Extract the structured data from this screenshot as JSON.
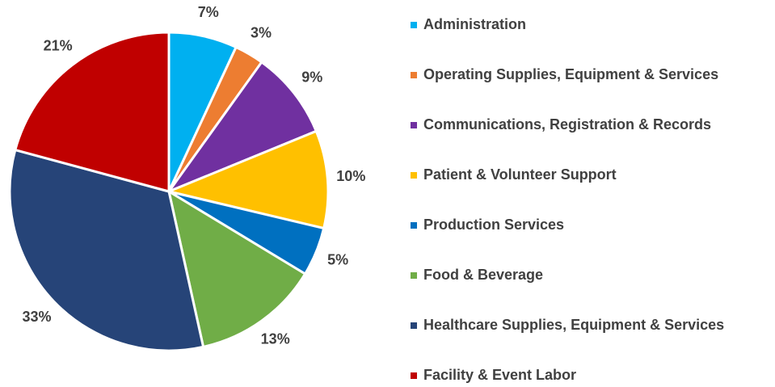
{
  "chart_data": {
    "type": "pie",
    "categories": [
      "Administration",
      "Operating Supplies, Equipment & Services",
      "Communications, Registration & Records",
      "Patient & Volunteer Support",
      "Production Services",
      "Food & Beverage",
      "Healthcare Supplies, Equipment & Services",
      "Facility & Event Labor"
    ],
    "values": [
      7,
      3,
      9,
      10,
      5,
      13,
      33,
      21
    ],
    "value_labels": [
      "7%",
      "3%",
      "9%",
      "10%",
      "5%",
      "13%",
      "33%",
      "21%"
    ],
    "colors": [
      "#00b0f0",
      "#ed7d31",
      "#7030a0",
      "#ffc000",
      "#0070c0",
      "#70ad47",
      "#264478",
      "#c00000"
    ],
    "legend": "right"
  }
}
